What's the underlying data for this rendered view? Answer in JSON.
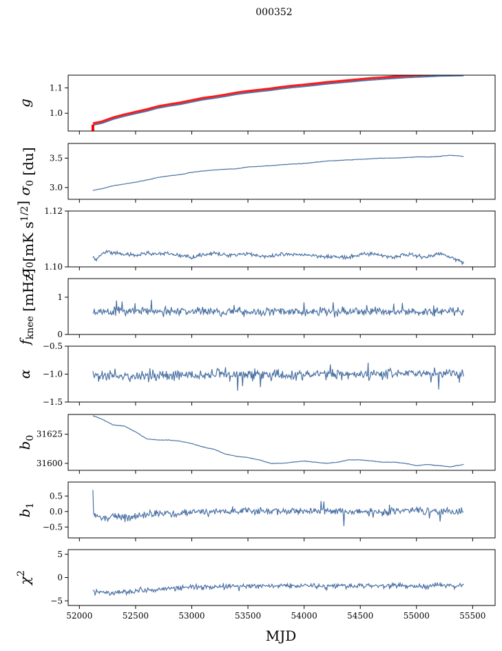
{
  "figure": {
    "title": "000352",
    "xlabel": "MJD"
  },
  "chart_data": {
    "type": "line",
    "shared_x": {
      "range": [
        51900,
        55700
      ],
      "ticks": [
        52000,
        52500,
        53000,
        53500,
        54000,
        54500,
        55000,
        55500
      ],
      "tick_labels": [
        "52000",
        "52500",
        "53000",
        "53500",
        "54000",
        "54500",
        "55000",
        "55500"
      ]
    },
    "line_color": "#4c72a4",
    "panels": [
      {
        "id": "g",
        "ylabel_tex": "g",
        "ylim": [
          0.93,
          1.15
        ],
        "yticks": [
          1.0,
          1.1
        ],
        "ytick_labels": [
          "1.0",
          "1.1"
        ],
        "overlay_color": "#ff0000",
        "points": [
          [
            52120,
            0.955
          ],
          [
            52200,
            0.962
          ],
          [
            52300,
            0.978
          ],
          [
            52400,
            0.99
          ],
          [
            52500,
            1.0
          ],
          [
            52600,
            1.01
          ],
          [
            52700,
            1.022
          ],
          [
            52800,
            1.03
          ],
          [
            52900,
            1.037
          ],
          [
            53000,
            1.046
          ],
          [
            53100,
            1.055
          ],
          [
            53200,
            1.061
          ],
          [
            53300,
            1.068
          ],
          [
            53400,
            1.076
          ],
          [
            53500,
            1.082
          ],
          [
            53600,
            1.087
          ],
          [
            53700,
            1.092
          ],
          [
            53800,
            1.098
          ],
          [
            53900,
            1.103
          ],
          [
            54000,
            1.107
          ],
          [
            54100,
            1.112
          ],
          [
            54200,
            1.117
          ],
          [
            54300,
            1.121
          ],
          [
            54400,
            1.125
          ],
          [
            54500,
            1.129
          ],
          [
            54600,
            1.133
          ],
          [
            54700,
            1.136
          ],
          [
            54800,
            1.139
          ],
          [
            54900,
            1.142
          ],
          [
            55000,
            1.144
          ],
          [
            55100,
            1.146
          ],
          [
            55200,
            1.148
          ],
          [
            55300,
            1.149
          ],
          [
            55420,
            1.15
          ]
        ]
      },
      {
        "id": "sigma0_du",
        "ylabel_tex": "σ0 [du]",
        "ylim": [
          2.8,
          3.75
        ],
        "yticks": [
          3.0,
          3.5
        ],
        "ytick_labels": [
          "3.0",
          "3.5"
        ],
        "points": [
          [
            52120,
            2.95
          ],
          [
            52200,
            2.98
          ],
          [
            52300,
            3.03
          ],
          [
            52400,
            3.06
          ],
          [
            52500,
            3.09
          ],
          [
            52600,
            3.13
          ],
          [
            52700,
            3.17
          ],
          [
            52800,
            3.2
          ],
          [
            52900,
            3.22
          ],
          [
            53000,
            3.26
          ],
          [
            53100,
            3.28
          ],
          [
            53200,
            3.3
          ],
          [
            53300,
            3.31
          ],
          [
            53400,
            3.32
          ],
          [
            53500,
            3.35
          ],
          [
            53600,
            3.36
          ],
          [
            53700,
            3.37
          ],
          [
            53800,
            3.39
          ],
          [
            53900,
            3.4
          ],
          [
            54000,
            3.41
          ],
          [
            54100,
            3.43
          ],
          [
            54200,
            3.45
          ],
          [
            54300,
            3.46
          ],
          [
            54400,
            3.47
          ],
          [
            54500,
            3.48
          ],
          [
            54600,
            3.49
          ],
          [
            54700,
            3.5
          ],
          [
            54800,
            3.5
          ],
          [
            54900,
            3.51
          ],
          [
            55000,
            3.52
          ],
          [
            55100,
            3.52
          ],
          [
            55200,
            3.53
          ],
          [
            55300,
            3.55
          ],
          [
            55420,
            3.53
          ]
        ]
      },
      {
        "id": "sigma0_mks",
        "ylabel_tex": "σ0[mK s^1/2]",
        "ylim": [
          1.1,
          1.12
        ],
        "yticks": [
          1.1,
          1.12
        ],
        "ytick_labels": [
          "1.10",
          "1.12"
        ],
        "points": [
          [
            52120,
            1.1035
          ],
          [
            52150,
            1.1025
          ],
          [
            52200,
            1.1045
          ],
          [
            52250,
            1.1055
          ],
          [
            52300,
            1.1048
          ],
          [
            52400,
            1.1045
          ],
          [
            52500,
            1.104
          ],
          [
            52600,
            1.105
          ],
          [
            52700,
            1.1045
          ],
          [
            52800,
            1.1048
          ],
          [
            52900,
            1.104
          ],
          [
            53000,
            1.1035
          ],
          [
            53100,
            1.1045
          ],
          [
            53200,
            1.1048
          ],
          [
            53300,
            1.1042
          ],
          [
            53400,
            1.1045
          ],
          [
            53500,
            1.1048
          ],
          [
            53600,
            1.104
          ],
          [
            53700,
            1.1035
          ],
          [
            53800,
            1.1045
          ],
          [
            53900,
            1.1042
          ],
          [
            54000,
            1.1045
          ],
          [
            54100,
            1.104
          ],
          [
            54200,
            1.1038
          ],
          [
            54300,
            1.1035
          ],
          [
            54400,
            1.1032
          ],
          [
            54500,
            1.1045
          ],
          [
            54600,
            1.1048
          ],
          [
            54700,
            1.104
          ],
          [
            54800,
            1.1035
          ],
          [
            54900,
            1.1045
          ],
          [
            55000,
            1.104
          ],
          [
            55100,
            1.1035
          ],
          [
            55200,
            1.1048
          ],
          [
            55300,
            1.1038
          ],
          [
            55420,
            1.1012
          ]
        ]
      },
      {
        "id": "fknee",
        "ylabel_tex": "fknee [mHz]",
        "ylim": [
          0,
          1.5
        ],
        "yticks": [
          0,
          1
        ],
        "ytick_labels": [
          "0",
          "1"
        ],
        "points": [
          [
            52120,
            0.6
          ],
          [
            52300,
            0.62
          ],
          [
            52500,
            0.63
          ],
          [
            52700,
            0.6
          ],
          [
            52900,
            0.62
          ],
          [
            53100,
            0.63
          ],
          [
            53300,
            0.6
          ],
          [
            53500,
            0.61
          ],
          [
            53700,
            0.62
          ],
          [
            53900,
            0.6
          ],
          [
            54100,
            0.61
          ],
          [
            54300,
            0.6
          ],
          [
            54500,
            0.62
          ],
          [
            54700,
            0.63
          ],
          [
            54900,
            0.61
          ],
          [
            55100,
            0.6
          ],
          [
            55300,
            0.62
          ],
          [
            55420,
            0.6
          ]
        ]
      },
      {
        "id": "alpha",
        "ylabel_tex": "α",
        "ylim": [
          -1.5,
          -0.5
        ],
        "yticks": [
          -1.5,
          -1.0,
          -0.5
        ],
        "ytick_labels": [
          "−1.5",
          "−1.0",
          "−0.5"
        ],
        "points": [
          [
            52120,
            -1.05
          ],
          [
            52400,
            -1.05
          ],
          [
            52700,
            -1.02
          ],
          [
            53000,
            -1.03
          ],
          [
            53300,
            -1.0
          ],
          [
            53600,
            -1.0
          ],
          [
            53900,
            -1.02
          ],
          [
            54200,
            -1.0
          ],
          [
            54500,
            -1.0
          ],
          [
            54800,
            -0.98
          ],
          [
            55100,
            -0.98
          ],
          [
            55420,
            -1.0
          ]
        ]
      },
      {
        "id": "b0",
        "ylabel_tex": "b0",
        "ylim": [
          31594,
          31642
        ],
        "yticks": [
          31600,
          31625
        ],
        "ytick_labels": [
          "31600",
          "31625"
        ],
        "points": [
          [
            52120,
            31641
          ],
          [
            52200,
            31638
          ],
          [
            52300,
            31633
          ],
          [
            52400,
            31632
          ],
          [
            52500,
            31627
          ],
          [
            52600,
            31621
          ],
          [
            52700,
            31620
          ],
          [
            52800,
            31620
          ],
          [
            52900,
            31619
          ],
          [
            53000,
            31617
          ],
          [
            53100,
            31614
          ],
          [
            53200,
            31612
          ],
          [
            53300,
            31608
          ],
          [
            53400,
            31606
          ],
          [
            53500,
            31605
          ],
          [
            53600,
            31603
          ],
          [
            53700,
            31600
          ],
          [
            53800,
            31600
          ],
          [
            53900,
            31601
          ],
          [
            54000,
            31602
          ],
          [
            54100,
            31601
          ],
          [
            54200,
            31600
          ],
          [
            54300,
            31601
          ],
          [
            54400,
            31603
          ],
          [
            54500,
            31603
          ],
          [
            54600,
            31602
          ],
          [
            54700,
            31601
          ],
          [
            54800,
            31601
          ],
          [
            54900,
            31600
          ],
          [
            55000,
            31598
          ],
          [
            55100,
            31599
          ],
          [
            55200,
            31598
          ],
          [
            55300,
            31597
          ],
          [
            55420,
            31599
          ]
        ]
      },
      {
        "id": "b1",
        "ylabel_tex": "b1",
        "ylim": [
          -0.85,
          0.95
        ],
        "yticks": [
          -0.5,
          0.0,
          0.5
        ],
        "ytick_labels": [
          "−0.5",
          "0.0",
          "0.5"
        ],
        "points": [
          [
            52120,
            0.6
          ],
          [
            52125,
            -0.1
          ],
          [
            52200,
            -0.2
          ],
          [
            52300,
            -0.15
          ],
          [
            52400,
            -0.2
          ],
          [
            52500,
            -0.15
          ],
          [
            52600,
            -0.12
          ],
          [
            52700,
            -0.05
          ],
          [
            52800,
            -0.08
          ],
          [
            52900,
            -0.05
          ],
          [
            53000,
            -0.02
          ],
          [
            53200,
            0.0
          ],
          [
            53400,
            0.0
          ],
          [
            53600,
            0.0
          ],
          [
            53800,
            0.02
          ],
          [
            54000,
            0.03
          ],
          [
            54200,
            0.02
          ],
          [
            54400,
            0.0
          ],
          [
            54600,
            -0.02
          ],
          [
            54800,
            0.0
          ],
          [
            55000,
            0.05
          ],
          [
            55200,
            0.02
          ],
          [
            55420,
            0.0
          ]
        ]
      },
      {
        "id": "chi2",
        "ylabel_tex": "χ2",
        "ylim": [
          -6,
          6
        ],
        "yticks": [
          -5,
          0,
          5
        ],
        "ytick_labels": [
          "−5",
          "0",
          "5"
        ],
        "points": [
          [
            52120,
            -2.8
          ],
          [
            52200,
            -3.2
          ],
          [
            52300,
            -3.3
          ],
          [
            52400,
            -3.0
          ],
          [
            52500,
            -2.8
          ],
          [
            52600,
            -2.6
          ],
          [
            52700,
            -2.5
          ],
          [
            52800,
            -2.4
          ],
          [
            52900,
            -2.2
          ],
          [
            53000,
            -2.1
          ],
          [
            53200,
            -2.0
          ],
          [
            53400,
            -1.8
          ],
          [
            53600,
            -1.9
          ],
          [
            53800,
            -1.7
          ],
          [
            54000,
            -1.7
          ],
          [
            54200,
            -1.8
          ],
          [
            54400,
            -1.6
          ],
          [
            54600,
            -1.8
          ],
          [
            54800,
            -1.7
          ],
          [
            55000,
            -1.9
          ],
          [
            55200,
            -1.7
          ],
          [
            55420,
            -1.8
          ]
        ]
      }
    ]
  }
}
